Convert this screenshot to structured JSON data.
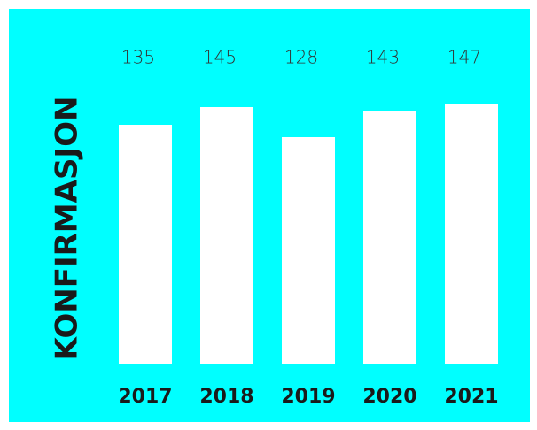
{
  "chart_data": {
    "type": "bar",
    "y_label": "KONFIRMASJON",
    "categories": [
      "2017",
      "2018",
      "2019",
      "2020",
      "2021"
    ],
    "values": [
      135,
      145,
      128,
      143,
      147
    ],
    "color": "#ffffff",
    "background": "#00ffff",
    "ylim": [
      0,
      150
    ]
  }
}
